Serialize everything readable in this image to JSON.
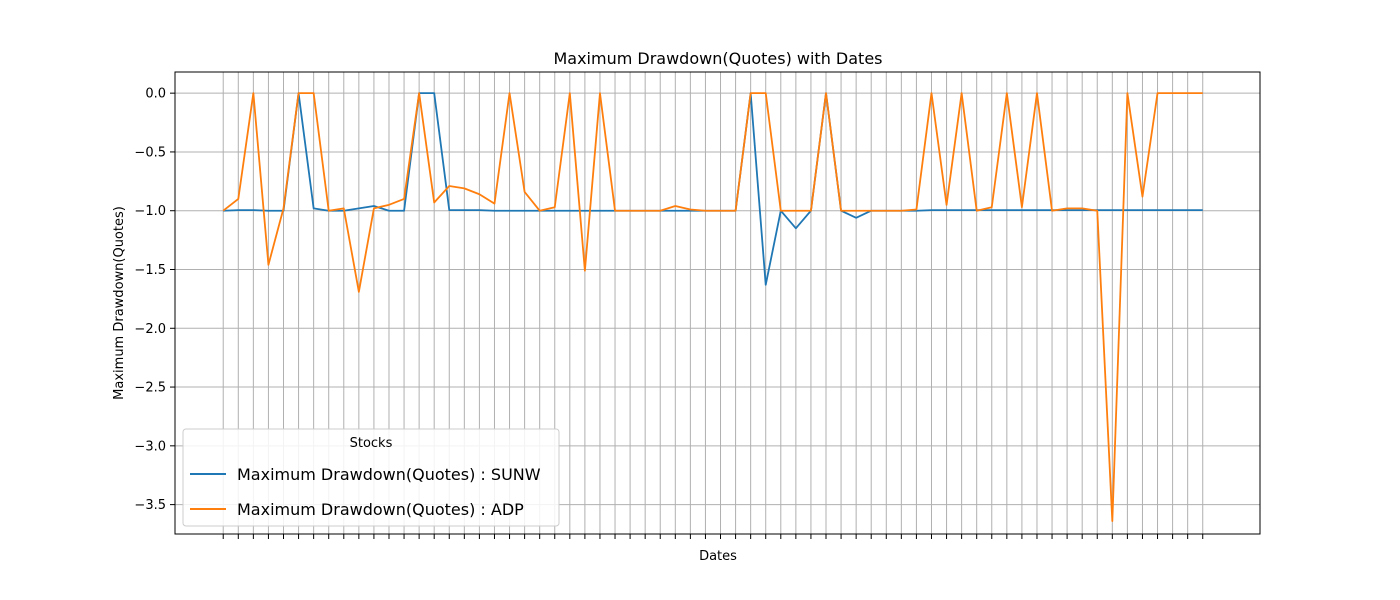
{
  "chart_data": {
    "type": "line",
    "title": "Maximum Drawdown(Quotes) with Dates",
    "xlabel": "Dates",
    "ylabel": "Maximum Drawdown(Quotes)",
    "ylim": [
      -3.75,
      0.18
    ],
    "yticks": [
      0.0,
      -0.5,
      -1.0,
      -1.5,
      -2.0,
      -2.5,
      -3.0,
      -3.5
    ],
    "ytick_labels": [
      "0.0",
      "−0.5",
      "−1.0",
      "−1.5",
      "−2.0",
      "−2.5",
      "−3.0",
      "−3.5"
    ],
    "x": [
      0,
      1,
      2,
      3,
      4,
      5,
      6,
      7,
      8,
      9,
      10,
      11,
      12,
      13,
      14,
      15,
      16,
      17,
      18,
      19,
      20,
      21,
      22,
      23,
      24,
      25,
      26,
      27,
      28,
      29,
      30,
      31,
      32,
      33,
      34,
      35,
      36,
      37,
      38,
      39,
      40,
      41,
      42,
      43,
      44,
      45,
      46,
      47,
      48,
      49,
      50,
      51,
      52,
      53,
      54,
      55,
      56,
      57,
      58,
      59,
      60,
      61,
      62,
      63,
      64,
      65
    ],
    "xlim": [
      -3.2,
      68.8
    ],
    "xtick_labels_shown": false,
    "grid": true,
    "legend_title": "Stocks",
    "legend_position": "lower-left",
    "series": [
      {
        "name": "Maximum Drawdown(Quotes) : SUNW",
        "color": "#1f77b4",
        "values": [
          -1.0,
          -0.995,
          -0.995,
          -1.0,
          -1.0,
          0.0,
          -0.98,
          -1.0,
          -1.0,
          -0.98,
          -0.96,
          -1.0,
          -1.0,
          0.0,
          0.0,
          -0.995,
          -0.995,
          -0.995,
          -1.0,
          -1.0,
          -1.0,
          -1.0,
          -1.0,
          -1.0,
          -1.0,
          -1.0,
          -1.0,
          -1.0,
          -1.0,
          -1.0,
          -1.0,
          -1.0,
          -1.0,
          -1.0,
          -1.0,
          0.0,
          -1.63,
          -1.0,
          -1.15,
          -1.0,
          0.0,
          -1.0,
          -1.06,
          -1.0,
          -1.0,
          -1.0,
          -1.0,
          -0.995,
          -0.995,
          -0.995,
          -0.995,
          -0.995,
          -0.995,
          -0.995,
          -0.995,
          -0.995,
          -0.995,
          -0.995,
          -0.995,
          -0.995,
          -0.995,
          -0.995,
          -0.995,
          -0.995,
          -0.995,
          -0.995
        ]
      },
      {
        "name": "Maximum Drawdown(Quotes) : ADP",
        "color": "#ff7f0e",
        "values": [
          -1.0,
          -0.9,
          0.0,
          -1.46,
          -0.98,
          0.0,
          0.0,
          -1.0,
          -0.98,
          -1.69,
          -0.98,
          -0.95,
          -0.9,
          0.0,
          -0.93,
          -0.79,
          -0.81,
          -0.86,
          -0.94,
          0.0,
          -0.84,
          -1.0,
          -0.97,
          0.0,
          -1.51,
          0.0,
          -1.0,
          -1.0,
          -1.0,
          -1.0,
          -0.96,
          -0.99,
          -1.0,
          -1.0,
          -1.0,
          0.0,
          0.0,
          -1.0,
          -1.0,
          -1.0,
          0.0,
          -1.0,
          -1.0,
          -1.0,
          -1.0,
          -1.0,
          -0.99,
          0.0,
          -0.95,
          0.0,
          -1.0,
          -0.97,
          0.0,
          -0.97,
          0.0,
          -1.0,
          -0.98,
          -0.98,
          -1.0,
          -3.64,
          0.0,
          -0.88,
          0.0,
          0.0,
          0.0,
          0.0
        ]
      }
    ]
  }
}
